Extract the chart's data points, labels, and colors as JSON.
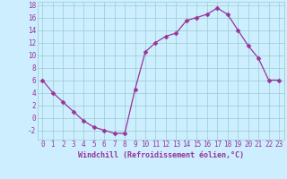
{
  "x": [
    0,
    1,
    2,
    3,
    4,
    5,
    6,
    7,
    8,
    9,
    10,
    11,
    12,
    13,
    14,
    15,
    16,
    17,
    18,
    19,
    20,
    21,
    22,
    23
  ],
  "y": [
    6,
    4,
    2.5,
    1,
    -0.5,
    -1.5,
    -2,
    -2.5,
    -2.5,
    4.5,
    10.5,
    12,
    13,
    13.5,
    15.5,
    16,
    16.5,
    17.5,
    16.5,
    14,
    11.5,
    9.5,
    6,
    6
  ],
  "line_color": "#993399",
  "marker": "D",
  "marker_size": 2.5,
  "bg_color": "#cceeff",
  "grid_color": "#99cccc",
  "xlabel": "Windchill (Refroidissement éolien,°C)",
  "xlabel_fontsize": 6,
  "tick_color": "#993399",
  "tick_fontsize": 5.5,
  "ylim": [
    -3.5,
    18.5
  ],
  "xlim": [
    -0.5,
    23.5
  ],
  "yticks": [
    -2,
    0,
    2,
    4,
    6,
    8,
    10,
    12,
    14,
    16,
    18
  ],
  "xticks": [
    0,
    1,
    2,
    3,
    4,
    5,
    6,
    7,
    8,
    9,
    10,
    11,
    12,
    13,
    14,
    15,
    16,
    17,
    18,
    19,
    20,
    21,
    22,
    23
  ],
  "xtick_labels": [
    "0",
    "1",
    "2",
    "3",
    "4",
    "5",
    "6",
    "7",
    "8",
    "9",
    "10",
    "11",
    "12",
    "13",
    "14",
    "15",
    "16",
    "17",
    "18",
    "19",
    "20",
    "21",
    "22",
    "23"
  ]
}
